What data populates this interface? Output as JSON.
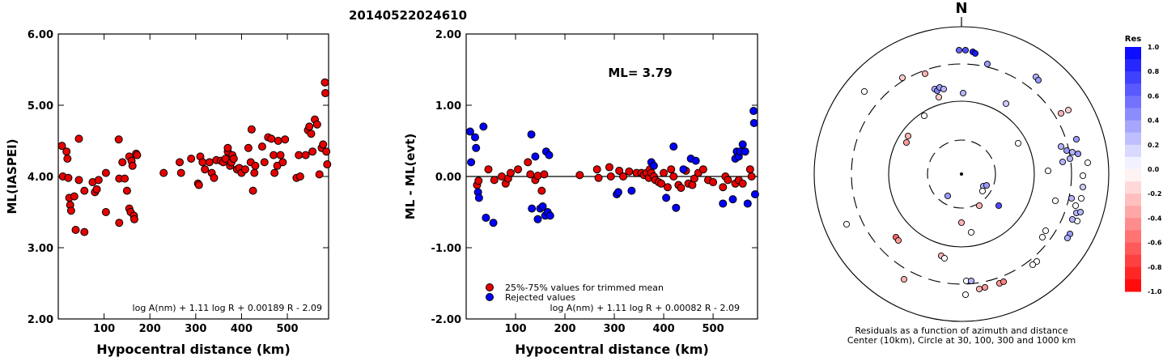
{
  "title": "20140522024610",
  "chart_data": [
    {
      "type": "scatter",
      "ylabel": "ML(IASPEI)",
      "xlabel": "Hypocentral distance (km)",
      "xlim": [
        0,
        590
      ],
      "ylim": [
        2.0,
        6.0
      ],
      "xticks": [
        "100",
        "200",
        "300",
        "400",
        "500"
      ],
      "yticks": [
        "2.00",
        "3.00",
        "4.00",
        "5.00",
        "6.00"
      ],
      "formula": "log A(nm) + 1.11 log R + 0.00189 R - 2.09",
      "color": "#e60000",
      "points": [
        [
          8,
          4.43
        ],
        [
          10,
          4.0
        ],
        [
          18,
          4.35
        ],
        [
          20,
          4.25
        ],
        [
          22,
          3.98
        ],
        [
          24,
          3.7
        ],
        [
          26,
          3.6
        ],
        [
          28,
          3.52
        ],
        [
          35,
          3.72
        ],
        [
          38,
          3.25
        ],
        [
          45,
          4.53
        ],
        [
          45,
          3.95
        ],
        [
          57,
          3.22
        ],
        [
          57,
          3.8
        ],
        [
          75,
          3.92
        ],
        [
          80,
          3.78
        ],
        [
          84,
          3.82
        ],
        [
          88,
          3.95
        ],
        [
          104,
          4.05
        ],
        [
          104,
          3.5
        ],
        [
          132,
          4.52
        ],
        [
          133,
          3.97
        ],
        [
          133,
          3.35
        ],
        [
          140,
          4.2
        ],
        [
          145,
          3.97
        ],
        [
          150,
          3.8
        ],
        [
          155,
          4.28
        ],
        [
          155,
          3.55
        ],
        [
          158,
          3.5
        ],
        [
          160,
          4.22
        ],
        [
          162,
          4.15
        ],
        [
          165,
          3.45
        ],
        [
          166,
          3.4
        ],
        [
          170,
          4.32
        ],
        [
          172,
          4.3
        ],
        [
          230,
          4.05
        ],
        [
          265,
          4.2
        ],
        [
          268,
          4.05
        ],
        [
          290,
          4.25
        ],
        [
          305,
          3.9
        ],
        [
          307,
          3.88
        ],
        [
          310,
          4.28
        ],
        [
          315,
          4.2
        ],
        [
          320,
          4.1
        ],
        [
          330,
          4.2
        ],
        [
          335,
          4.05
        ],
        [
          340,
          3.98
        ],
        [
          345,
          4.23
        ],
        [
          355,
          4.22
        ],
        [
          360,
          4.2
        ],
        [
          365,
          4.25
        ],
        [
          370,
          4.35
        ],
        [
          370,
          4.4
        ],
        [
          375,
          4.15
        ],
        [
          378,
          4.2
        ],
        [
          380,
          4.3
        ],
        [
          383,
          4.25
        ],
        [
          390,
          4.1
        ],
        [
          395,
          4.12
        ],
        [
          400,
          4.05
        ],
        [
          408,
          4.1
        ],
        [
          415,
          4.4
        ],
        [
          420,
          4.2
        ],
        [
          422,
          4.66
        ],
        [
          425,
          3.8
        ],
        [
          428,
          4.05
        ],
        [
          430,
          4.15
        ],
        [
          445,
          4.42
        ],
        [
          450,
          4.2
        ],
        [
          458,
          4.55
        ],
        [
          465,
          4.53
        ],
        [
          470,
          4.3
        ],
        [
          472,
          4.05
        ],
        [
          478,
          4.15
        ],
        [
          480,
          4.5
        ],
        [
          485,
          4.3
        ],
        [
          490,
          4.2
        ],
        [
          495,
          4.52
        ],
        [
          520,
          3.98
        ],
        [
          525,
          4.3
        ],
        [
          528,
          4.0
        ],
        [
          540,
          4.3
        ],
        [
          545,
          4.65
        ],
        [
          548,
          4.7
        ],
        [
          552,
          4.6
        ],
        [
          555,
          4.35
        ],
        [
          560,
          4.8
        ],
        [
          565,
          4.73
        ],
        [
          570,
          4.03
        ],
        [
          575,
          4.4
        ],
        [
          578,
          4.45
        ],
        [
          582,
          5.32
        ],
        [
          583,
          5.17
        ],
        [
          585,
          4.35
        ],
        [
          587,
          4.17
        ]
      ]
    },
    {
      "type": "scatter",
      "ylabel": "ML - ML(evt)",
      "xlabel": "Hypocentral distance (km)",
      "xlim": [
        0,
        590
      ],
      "ylim": [
        -2.0,
        2.0
      ],
      "xticks": [
        "100",
        "200",
        "300",
        "400",
        "500"
      ],
      "yticks": [
        "-2.00",
        "-1.00",
        "0.00",
        "1.00",
        "2.00"
      ],
      "annotation": "ML= 3.79",
      "formula": "log A(nm) + 1.11 log R + 0.00082 R - 2.09",
      "series": [
        {
          "name": "25%-75% values for trimmed mean",
          "color": "#e60000",
          "points": [
            [
              22,
              -0.12
            ],
            [
              25,
              -0.06
            ],
            [
              45,
              0.1
            ],
            [
              57,
              -0.05
            ],
            [
              72,
              0.0
            ],
            [
              80,
              -0.1
            ],
            [
              85,
              -0.03
            ],
            [
              90,
              0.05
            ],
            [
              105,
              0.1
            ],
            [
              125,
              0.2
            ],
            [
              130,
              0.03
            ],
            [
              140,
              -0.05
            ],
            [
              145,
              0.01
            ],
            [
              153,
              -0.2
            ],
            [
              158,
              0.03
            ],
            [
              230,
              0.02
            ],
            [
              265,
              0.1
            ],
            [
              268,
              -0.02
            ],
            [
              290,
              0.13
            ],
            [
              293,
              0.0
            ],
            [
              310,
              0.08
            ],
            [
              318,
              0.0
            ],
            [
              330,
              0.07
            ],
            [
              345,
              0.05
            ],
            [
              355,
              0.05
            ],
            [
              360,
              0.02
            ],
            [
              365,
              0.05
            ],
            [
              370,
              -0.02
            ],
            [
              372,
              0.1
            ],
            [
              375,
              0.05
            ],
            [
              380,
              0.0
            ],
            [
              383,
              -0.05
            ],
            [
              390,
              -0.08
            ],
            [
              395,
              -0.1
            ],
            [
              400,
              0.05
            ],
            [
              408,
              -0.15
            ],
            [
              415,
              0.1
            ],
            [
              420,
              0.0
            ],
            [
              430,
              -0.12
            ],
            [
              435,
              -0.16
            ],
            [
              445,
              0.08
            ],
            [
              450,
              -0.1
            ],
            [
              458,
              -0.12
            ],
            [
              462,
              -0.03
            ],
            [
              470,
              0.05
            ],
            [
              480,
              0.1
            ],
            [
              490,
              -0.05
            ],
            [
              500,
              -0.08
            ],
            [
              520,
              -0.15
            ],
            [
              525,
              0.0
            ],
            [
              530,
              -0.05
            ],
            [
              545,
              -0.1
            ],
            [
              552,
              -0.05
            ],
            [
              560,
              -0.1
            ],
            [
              575,
              0.1
            ],
            [
              578,
              0.0
            ]
          ]
        },
        {
          "name": "Rejected values",
          "color": "#0000ff",
          "points": [
            [
              8,
              0.63
            ],
            [
              10,
              0.2
            ],
            [
              18,
              0.55
            ],
            [
              20,
              0.4
            ],
            [
              24,
              -0.22
            ],
            [
              26,
              -0.3
            ],
            [
              35,
              0.7
            ],
            [
              40,
              -0.58
            ],
            [
              55,
              -0.65
            ],
            [
              132,
              0.59
            ],
            [
              133,
              -0.45
            ],
            [
              140,
              0.28
            ],
            [
              145,
              -0.6
            ],
            [
              150,
              -0.45
            ],
            [
              155,
              -0.42
            ],
            [
              160,
              -0.55
            ],
            [
              162,
              0.35
            ],
            [
              165,
              -0.5
            ],
            [
              168,
              0.3
            ],
            [
              170,
              -0.55
            ],
            [
              305,
              -0.25
            ],
            [
              308,
              -0.22
            ],
            [
              335,
              -0.2
            ],
            [
              375,
              0.2
            ],
            [
              380,
              0.15
            ],
            [
              405,
              -0.3
            ],
            [
              420,
              0.42
            ],
            [
              425,
              -0.44
            ],
            [
              440,
              0.1
            ],
            [
              455,
              0.25
            ],
            [
              465,
              0.22
            ],
            [
              520,
              -0.38
            ],
            [
              540,
              -0.32
            ],
            [
              545,
              0.25
            ],
            [
              548,
              0.35
            ],
            [
              552,
              0.28
            ],
            [
              555,
              0.35
            ],
            [
              560,
              0.45
            ],
            [
              565,
              0.35
            ],
            [
              570,
              -0.38
            ],
            [
              582,
              0.92
            ],
            [
              583,
              0.75
            ],
            [
              585,
              -0.25
            ]
          ]
        }
      ]
    },
    {
      "type": "polar",
      "north_label": "N",
      "caption": "Residuals as a function of azimuth and distance",
      "caption2": "Center (10km), Circle at 30, 100, 300 and 1000 km",
      "colorbar_title": "Res",
      "colorbar_ticks": [
        "1.0",
        "0.8",
        "0.6",
        "0.4",
        "0.2",
        "0.0",
        "-0.2",
        "-0.4",
        "-0.6",
        "-0.8",
        "-1.0"
      ],
      "stations": [
        [
          1185,
          62,
          0.6
        ],
        [
          1193,
          62,
          0.7
        ],
        [
          1202,
          64,
          0.9
        ],
        [
          1205,
          66,
          0.9
        ],
        [
          1220,
          79,
          0.4
        ],
        [
          1068,
          113,
          0.0
        ],
        [
          1115,
          96,
          -0.2
        ],
        [
          1143,
          91,
          -0.3
        ],
        [
          1155,
          110,
          0.3
        ],
        [
          1158,
          112,
          0.5
        ],
        [
          1161,
          108,
          0.4
        ],
        [
          1166,
          110,
          0.3
        ],
        [
          1160,
          120,
          -0.2
        ],
        [
          1190,
          115,
          0.3
        ],
        [
          1243,
          128,
          0.2
        ],
        [
          1280,
          95,
          0.3
        ],
        [
          1283,
          99,
          0.4
        ],
        [
          1311,
          140,
          -0.3
        ],
        [
          1320,
          136,
          -0.2
        ],
        [
          1142,
          143,
          0.0
        ],
        [
          1122,
          168,
          -0.3
        ],
        [
          1120,
          176,
          -0.4
        ],
        [
          1258,
          177,
          0.0
        ],
        [
          1311,
          181,
          0.3
        ],
        [
          1318,
          186,
          0.4
        ],
        [
          1325,
          188,
          0.3
        ],
        [
          1330,
          172,
          0.4
        ],
        [
          1332,
          190,
          0.4
        ],
        [
          1322,
          196,
          0.3
        ],
        [
          1313,
          200,
          0.3
        ],
        [
          1344,
          201,
          0.0
        ],
        [
          1295,
          211,
          0.0
        ],
        [
          1338,
          217,
          0.0
        ],
        [
          1338,
          231,
          0.2
        ],
        [
          1215,
          230,
          0.3
        ],
        [
          1171,
          242,
          0.4
        ],
        [
          1214,
          236,
          0.0
        ],
        [
          1219,
          229,
          0.4
        ],
        [
          1234,
          254,
          0.7
        ],
        [
          1210,
          254,
          -0.3
        ],
        [
          1336,
          245,
          0.0
        ],
        [
          1324,
          245,
          0.3
        ],
        [
          1329,
          254,
          0.0
        ],
        [
          1330,
          263,
          0.3
        ],
        [
          1304,
          248,
          0.0
        ],
        [
          1335,
          262,
          0.3
        ],
        [
          1331,
          273,
          0.0
        ],
        [
          1325,
          271,
          0.3
        ],
        [
          1046,
          277,
          0.0
        ],
        [
          1188,
          275,
          -0.3
        ],
        [
          1200,
          287,
          0.0
        ],
        [
          1292,
          285,
          0.0
        ],
        [
          1288,
          293,
          0.0
        ],
        [
          1322,
          289,
          0.4
        ],
        [
          1319,
          294,
          0.3
        ],
        [
          1107,
          293,
          -0.6
        ],
        [
          1110,
          297,
          -0.4
        ],
        [
          1163,
          316,
          -0.3
        ],
        [
          1167,
          319,
          0.0
        ],
        [
          1281,
          323,
          0.0
        ],
        [
          1276,
          327,
          0.0
        ],
        [
          1194,
          347,
          0.0
        ],
        [
          1200,
          347,
          0.3
        ],
        [
          1210,
          357,
          -0.3
        ],
        [
          1217,
          355,
          -0.4
        ],
        [
          1235,
          350,
          -0.4
        ],
        [
          1240,
          348,
          -0.5
        ],
        [
          1117,
          345,
          -0.3
        ],
        [
          1193,
          364,
          0.0
        ]
      ]
    }
  ]
}
